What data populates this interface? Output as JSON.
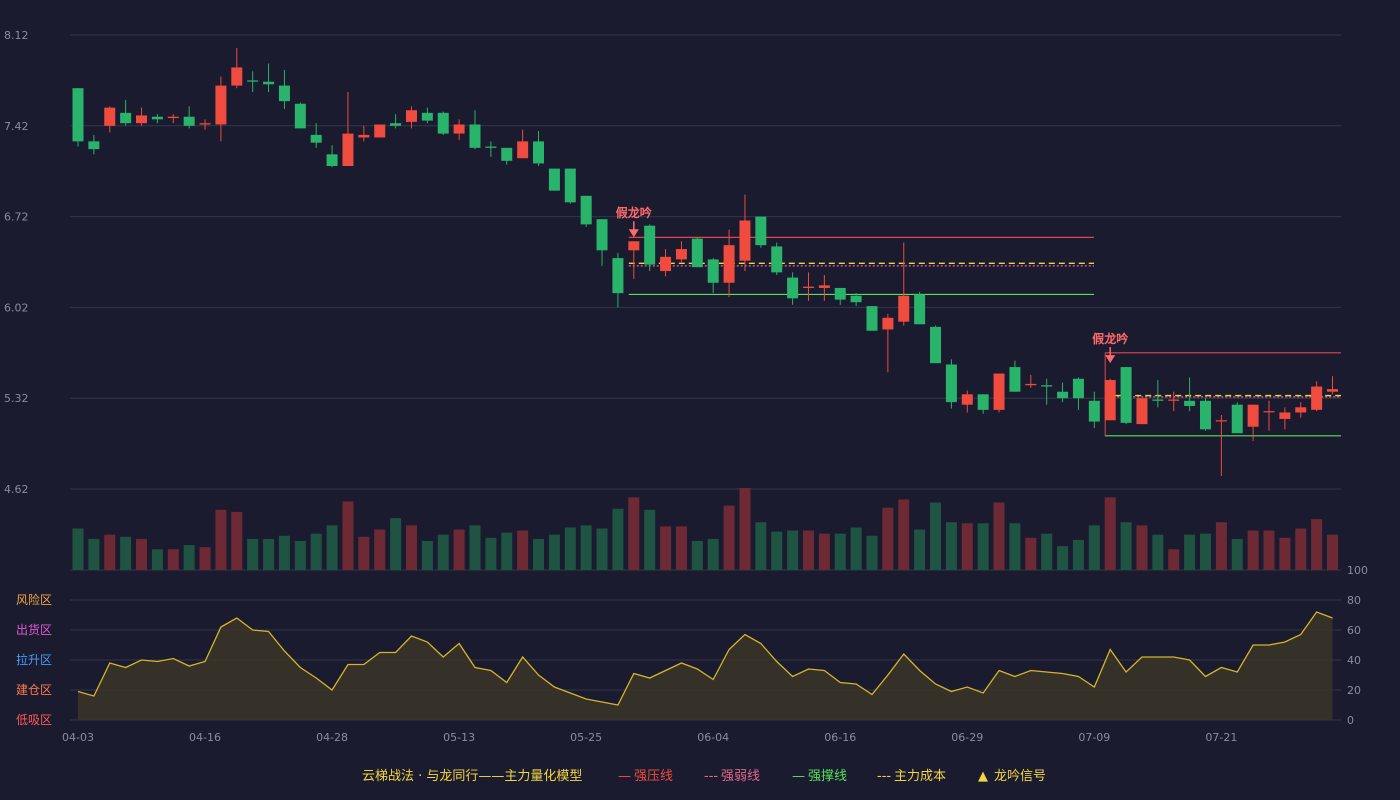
{
  "colors": {
    "background": "#1a1b2e",
    "up": "#ef4b3f",
    "down": "#2ab36a",
    "grid": "#34364a",
    "axis_text": "#8a8d9c",
    "resistance": "#e0474c",
    "weak": "#e06a8a",
    "support": "#58e05a",
    "cost": "#f2d541",
    "oscillator": "#d4b528",
    "signal": "#ff6b6b"
  },
  "chart_data": [
    {
      "type": "candlestick",
      "title": "",
      "ylim": [
        4.62,
        8.12
      ],
      "yticks": [
        "8.12",
        "7.42",
        "6.72",
        "6.02",
        "5.32",
        "4.62"
      ],
      "xtick_labels": [
        "04-03",
        "04-16",
        "04-28",
        "05-13",
        "05-25",
        "06-04",
        "06-16",
        "06-29",
        "07-09",
        "07-21"
      ],
      "xtick_indices": [
        0,
        8,
        16,
        24,
        32,
        40,
        48,
        56,
        64,
        72
      ],
      "candles": [
        {
          "o": 7.71,
          "h": 7.71,
          "l": 7.26,
          "c": 7.3
        },
        {
          "o": 7.3,
          "h": 7.35,
          "l": 7.2,
          "c": 7.24
        },
        {
          "o": 7.42,
          "h": 7.57,
          "l": 7.37,
          "c": 7.56
        },
        {
          "o": 7.52,
          "h": 7.62,
          "l": 7.42,
          "c": 7.44
        },
        {
          "o": 7.44,
          "h": 7.56,
          "l": 7.42,
          "c": 7.5
        },
        {
          "o": 7.49,
          "h": 7.51,
          "l": 7.44,
          "c": 7.47
        },
        {
          "o": 7.48,
          "h": 7.51,
          "l": 7.44,
          "c": 7.49
        },
        {
          "o": 7.49,
          "h": 7.57,
          "l": 7.4,
          "c": 7.42
        },
        {
          "o": 7.43,
          "h": 7.47,
          "l": 7.39,
          "c": 7.44
        },
        {
          "o": 7.43,
          "h": 7.8,
          "l": 7.3,
          "c": 7.73
        },
        {
          "o": 7.73,
          "h": 8.02,
          "l": 7.71,
          "c": 7.87
        },
        {
          "o": 7.77,
          "h": 7.84,
          "l": 7.68,
          "c": 7.76
        },
        {
          "o": 7.76,
          "h": 7.9,
          "l": 7.68,
          "c": 7.74
        },
        {
          "o": 7.73,
          "h": 7.85,
          "l": 7.55,
          "c": 7.61
        },
        {
          "o": 7.59,
          "h": 7.6,
          "l": 7.4,
          "c": 7.4
        },
        {
          "o": 7.35,
          "h": 7.44,
          "l": 7.25,
          "c": 7.29
        },
        {
          "o": 7.2,
          "h": 7.27,
          "l": 7.1,
          "c": 7.11
        },
        {
          "o": 7.11,
          "h": 7.68,
          "l": 7.11,
          "c": 7.36
        },
        {
          "o": 7.33,
          "h": 7.42,
          "l": 7.3,
          "c": 7.35
        },
        {
          "o": 7.33,
          "h": 7.43,
          "l": 7.33,
          "c": 7.43
        },
        {
          "o": 7.44,
          "h": 7.51,
          "l": 7.4,
          "c": 7.42
        },
        {
          "o": 7.45,
          "h": 7.57,
          "l": 7.4,
          "c": 7.54
        },
        {
          "o": 7.52,
          "h": 7.56,
          "l": 7.44,
          "c": 7.46
        },
        {
          "o": 7.52,
          "h": 7.53,
          "l": 7.35,
          "c": 7.36
        },
        {
          "o": 7.36,
          "h": 7.47,
          "l": 7.31,
          "c": 7.43
        },
        {
          "o": 7.43,
          "h": 7.54,
          "l": 7.24,
          "c": 7.25
        },
        {
          "o": 7.26,
          "h": 7.3,
          "l": 7.18,
          "c": 7.25
        },
        {
          "o": 7.25,
          "h": 7.25,
          "l": 7.12,
          "c": 7.15
        },
        {
          "o": 7.17,
          "h": 7.39,
          "l": 7.17,
          "c": 7.3
        },
        {
          "o": 7.3,
          "h": 7.38,
          "l": 7.11,
          "c": 7.13
        },
        {
          "o": 7.09,
          "h": 7.09,
          "l": 6.92,
          "c": 6.92
        },
        {
          "o": 7.09,
          "h": 7.09,
          "l": 6.82,
          "c": 6.83
        },
        {
          "o": 6.88,
          "h": 6.88,
          "l": 6.64,
          "c": 6.66
        },
        {
          "o": 6.7,
          "h": 6.7,
          "l": 6.34,
          "c": 6.46
        },
        {
          "o": 6.4,
          "h": 6.44,
          "l": 6.02,
          "c": 6.13
        },
        {
          "o": 6.46,
          "h": 6.52,
          "l": 6.24,
          "c": 6.53
        },
        {
          "o": 6.65,
          "h": 6.66,
          "l": 6.3,
          "c": 6.35
        },
        {
          "o": 6.3,
          "h": 6.47,
          "l": 6.26,
          "c": 6.41
        },
        {
          "o": 6.39,
          "h": 6.53,
          "l": 6.37,
          "c": 6.47
        },
        {
          "o": 6.55,
          "h": 6.56,
          "l": 6.35,
          "c": 6.33
        },
        {
          "o": 6.39,
          "h": 6.4,
          "l": 6.13,
          "c": 6.21
        },
        {
          "o": 6.21,
          "h": 6.62,
          "l": 6.1,
          "c": 6.5
        },
        {
          "o": 6.38,
          "h": 6.89,
          "l": 6.3,
          "c": 6.69
        },
        {
          "o": 6.72,
          "h": 6.72,
          "l": 6.48,
          "c": 6.5
        },
        {
          "o": 6.49,
          "h": 6.52,
          "l": 6.27,
          "c": 6.29
        },
        {
          "o": 6.25,
          "h": 6.29,
          "l": 6.04,
          "c": 6.09
        },
        {
          "o": 6.17,
          "h": 6.29,
          "l": 6.07,
          "c": 6.18
        },
        {
          "o": 6.17,
          "h": 6.27,
          "l": 6.07,
          "c": 6.19
        },
        {
          "o": 6.17,
          "h": 6.17,
          "l": 6.04,
          "c": 6.08
        },
        {
          "o": 6.11,
          "h": 6.13,
          "l": 6.03,
          "c": 6.06
        },
        {
          "o": 6.03,
          "h": 6.03,
          "l": 5.84,
          "c": 5.84
        },
        {
          "o": 5.85,
          "h": 5.97,
          "l": 5.52,
          "c": 5.94
        },
        {
          "o": 5.91,
          "h": 6.52,
          "l": 5.88,
          "c": 6.11
        },
        {
          "o": 6.12,
          "h": 6.14,
          "l": 5.9,
          "c": 5.89
        },
        {
          "o": 5.87,
          "h": 5.88,
          "l": 5.62,
          "c": 5.59
        },
        {
          "o": 5.58,
          "h": 5.62,
          "l": 5.24,
          "c": 5.29
        },
        {
          "o": 5.27,
          "h": 5.38,
          "l": 5.21,
          "c": 5.35
        },
        {
          "o": 5.35,
          "h": 5.35,
          "l": 5.2,
          "c": 5.23
        },
        {
          "o": 5.23,
          "h": 5.51,
          "l": 5.21,
          "c": 5.51
        },
        {
          "o": 5.56,
          "h": 5.61,
          "l": 5.37,
          "c": 5.37
        },
        {
          "o": 5.42,
          "h": 5.5,
          "l": 5.4,
          "c": 5.43
        },
        {
          "o": 5.42,
          "h": 5.47,
          "l": 5.27,
          "c": 5.41
        },
        {
          "o": 5.37,
          "h": 5.44,
          "l": 5.29,
          "c": 5.32
        },
        {
          "o": 5.47,
          "h": 5.48,
          "l": 5.23,
          "c": 5.32
        },
        {
          "o": 5.3,
          "h": 5.37,
          "l": 5.09,
          "c": 5.14
        },
        {
          "o": 5.15,
          "h": 5.47,
          "l": 5.15,
          "c": 5.46
        },
        {
          "o": 5.56,
          "h": 5.56,
          "l": 5.12,
          "c": 5.13
        },
        {
          "o": 5.12,
          "h": 5.32,
          "l": 5.12,
          "c": 5.32
        },
        {
          "o": 5.31,
          "h": 5.46,
          "l": 5.25,
          "c": 5.3
        },
        {
          "o": 5.3,
          "h": 5.37,
          "l": 5.22,
          "c": 5.31
        },
        {
          "o": 5.3,
          "h": 5.48,
          "l": 5.22,
          "c": 5.26
        },
        {
          "o": 5.3,
          "h": 5.32,
          "l": 5.07,
          "c": 5.08
        },
        {
          "o": 5.15,
          "h": 5.19,
          "l": 4.72,
          "c": 5.15
        },
        {
          "o": 5.27,
          "h": 5.29,
          "l": 5.08,
          "c": 5.05
        },
        {
          "o": 5.1,
          "h": 5.27,
          "l": 4.99,
          "c": 5.27
        },
        {
          "o": 5.22,
          "h": 5.3,
          "l": 5.07,
          "c": 5.22
        },
        {
          "o": 5.16,
          "h": 5.25,
          "l": 5.08,
          "c": 5.21
        },
        {
          "o": 5.21,
          "h": 5.29,
          "l": 5.17,
          "c": 5.25
        },
        {
          "o": 5.23,
          "h": 5.45,
          "l": 5.22,
          "c": 5.41
        },
        {
          "o": 5.37,
          "h": 5.49,
          "l": 5.35,
          "c": 5.39
        }
      ],
      "volumes": [
        40,
        30,
        34,
        32,
        30,
        20,
        20,
        24,
        22,
        58,
        56,
        30,
        30,
        33,
        28,
        35,
        43,
        66,
        32,
        39,
        50,
        43,
        28,
        34,
        39,
        43,
        31,
        36,
        38,
        30,
        34,
        41,
        43,
        40,
        59,
        70,
        58,
        42,
        42,
        28,
        30,
        62,
        79,
        46,
        37,
        38,
        38,
        35,
        35,
        41,
        33,
        60,
        68,
        39,
        65,
        46,
        45,
        45,
        65,
        45,
        31,
        35,
        23,
        29,
        43,
        70,
        46,
        43,
        34,
        20,
        34,
        35,
        46,
        30,
        38,
        38,
        31,
        40,
        49,
        34
      ]
    },
    {
      "type": "area",
      "ylim": [
        0,
        100
      ],
      "yticks_right": [
        "100",
        "80",
        "60",
        "40",
        "20",
        "0"
      ],
      "zone_labels": [
        "风险区",
        "出货区",
        "拉升区",
        "建仓区",
        "低吸区"
      ],
      "values": [
        19,
        16,
        38,
        35,
        40,
        39,
        41,
        36,
        39,
        62,
        68,
        60,
        59,
        46,
        35,
        28,
        20,
        37,
        37,
        45,
        45,
        56,
        52,
        42,
        51,
        35,
        33,
        25,
        42,
        30,
        22,
        18,
        14,
        12,
        10,
        31,
        28,
        33,
        38,
        34,
        27,
        47,
        57,
        51,
        39,
        29,
        34,
        33,
        25,
        24,
        17,
        30,
        44,
        33,
        24,
        19,
        22,
        18,
        33,
        29,
        33,
        32,
        31,
        29,
        22,
        47,
        32,
        42,
        42,
        42,
        40,
        29,
        35,
        32,
        50,
        50,
        52,
        57,
        72,
        68
      ]
    }
  ],
  "annotations": {
    "signals": [
      {
        "label": "假龙吟",
        "index": 35,
        "price": 6.53
      },
      {
        "label": "假龙吟",
        "index": 65,
        "price": 5.56
      }
    ],
    "zone1": {
      "start": 35,
      "end": 64,
      "resistance": 6.56,
      "weak": 6.34,
      "cost": 6.36,
      "support": 6.12
    },
    "zone2": {
      "start": 65,
      "end": 80,
      "resistance": 5.67,
      "weak": 5.33,
      "cost": 5.34,
      "support": 5.03
    }
  },
  "legend": {
    "title": "云梯战法 · 与龙同行——主力量化模型",
    "items": [
      {
        "symbol": "—",
        "label": "强压线",
        "color": "#ef4b3f"
      },
      {
        "symbol": "---",
        "label": "强弱线",
        "color": "#e06a8a"
      },
      {
        "symbol": "—",
        "label": "强撑线",
        "color": "#58e05a"
      },
      {
        "symbol": "---",
        "label": "主力成本",
        "color": "#f2d541"
      },
      {
        "symbol": "▲",
        "label": "龙吟信号",
        "color": "#f2d541"
      }
    ]
  }
}
